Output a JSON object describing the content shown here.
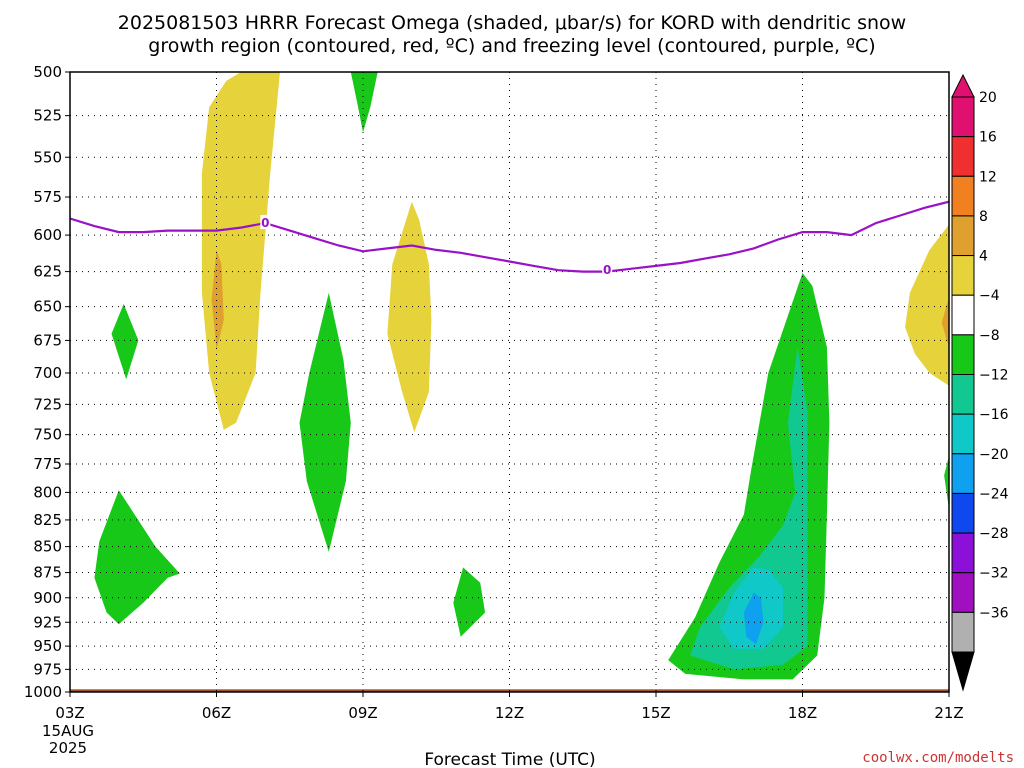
{
  "title": {
    "line1": "2025081503 HRRR Forecast Omega (shaded, μbar/s) for KORD with dendritic snow",
    "line2": "growth region (contoured, red, ºC) and freezing level (contoured, purple, ºC)"
  },
  "credit": "coolwx.com/modelts",
  "chart_data": {
    "type": "heatmap",
    "xlabel": "Forecast Time (UTC)",
    "ylabel": "",
    "x_range": [
      3,
      21
    ],
    "y_range": [
      500,
      1000
    ],
    "y_scale": "log-pressure (inverted)",
    "grid": true,
    "x_ticks": [
      {
        "value": 3,
        "label": "03Z",
        "sub": [
          "15AUG",
          "2025"
        ]
      },
      {
        "value": 6,
        "label": "06Z"
      },
      {
        "value": 9,
        "label": "09Z"
      },
      {
        "value": 12,
        "label": "12Z"
      },
      {
        "value": 15,
        "label": "15Z"
      },
      {
        "value": 18,
        "label": "18Z"
      },
      {
        "value": 21,
        "label": "21Z"
      }
    ],
    "y_ticks": [
      500,
      525,
      550,
      575,
      600,
      625,
      650,
      675,
      700,
      725,
      750,
      775,
      800,
      825,
      850,
      875,
      900,
      925,
      950,
      975,
      1000
    ],
    "colorbar": {
      "levels": [
        {
          "label": "20",
          "color": "#e01070"
        },
        {
          "label": "16",
          "color": "#f03030"
        },
        {
          "label": "12",
          "color": "#f08020"
        },
        {
          "label": "8",
          "color": "#e0a030"
        },
        {
          "label": "4",
          "color": "#e6d23a"
        },
        {
          "label": "−4",
          "color": "#ffffff"
        },
        {
          "label": "−8",
          "color": "#18c818"
        },
        {
          "label": "−12",
          "color": "#10c890"
        },
        {
          "label": "−16",
          "color": "#10c8c8"
        },
        {
          "label": "−20",
          "color": "#10a0f0"
        },
        {
          "label": "−24",
          "color": "#1048f0"
        },
        {
          "label": "−28",
          "color": "#8c10d8"
        },
        {
          "label": "−32",
          "color": "#a010c0"
        },
        {
          "label": "−36",
          "color": "#b0b0b0"
        }
      ],
      "over_color": "#e01070",
      "under_color": "#000000"
    },
    "freezing_level": {
      "color": "#9a12c8",
      "label": "0",
      "label_points": [
        {
          "x": 7.0,
          "p": 592
        },
        {
          "x": 14.0,
          "p": 624
        }
      ],
      "points": [
        [
          3.0,
          589
        ],
        [
          3.5,
          594
        ],
        [
          4.0,
          598
        ],
        [
          4.5,
          598
        ],
        [
          5.0,
          597
        ],
        [
          5.5,
          597
        ],
        [
          6.0,
          597
        ],
        [
          6.5,
          595
        ],
        [
          7.0,
          592
        ],
        [
          7.5,
          597
        ],
        [
          8.0,
          602
        ],
        [
          8.5,
          607
        ],
        [
          9.0,
          611
        ],
        [
          9.5,
          609
        ],
        [
          10.0,
          607
        ],
        [
          10.5,
          610
        ],
        [
          11.0,
          612
        ],
        [
          11.5,
          615
        ],
        [
          12.0,
          618
        ],
        [
          12.5,
          621
        ],
        [
          13.0,
          624
        ],
        [
          13.5,
          625
        ],
        [
          14.0,
          625
        ],
        [
          14.5,
          623
        ],
        [
          15.0,
          621
        ],
        [
          15.5,
          619
        ],
        [
          16.0,
          616
        ],
        [
          16.5,
          613
        ],
        [
          17.0,
          609
        ],
        [
          17.5,
          603
        ],
        [
          18.0,
          598
        ],
        [
          18.5,
          598
        ],
        [
          19.0,
          600
        ],
        [
          19.5,
          592
        ],
        [
          20.0,
          587
        ],
        [
          20.5,
          582
        ],
        [
          21.0,
          578
        ]
      ]
    },
    "ground_layer": {
      "color": "#a0522d",
      "level_hpa": 997
    },
    "shaded_regions": [
      {
        "name": "yellow-plume-06z",
        "range": "4 to 8",
        "color": "#e6d23a",
        "points": [
          [
            6.15,
            746
          ],
          [
            5.85,
            700
          ],
          [
            5.7,
            640
          ],
          [
            5.7,
            560
          ],
          [
            5.85,
            520
          ],
          [
            6.2,
            505
          ],
          [
            6.5,
            500
          ],
          [
            7.3,
            500
          ],
          [
            7.1,
            560
          ],
          [
            6.9,
            640
          ],
          [
            6.8,
            700
          ],
          [
            6.4,
            740
          ]
        ]
      },
      {
        "name": "orange-core-06z",
        "range": "8 to 12",
        "color": "#e0a030",
        "points": [
          [
            6.0,
            610
          ],
          [
            5.9,
            645
          ],
          [
            6.0,
            682
          ],
          [
            6.15,
            660
          ],
          [
            6.1,
            620
          ]
        ]
      },
      {
        "name": "yellow-plume-10z",
        "range": "4 to 8",
        "color": "#e6d23a",
        "points": [
          [
            10.0,
            578
          ],
          [
            9.6,
            620
          ],
          [
            9.5,
            670
          ],
          [
            9.8,
            715
          ],
          [
            10.05,
            748
          ],
          [
            10.35,
            715
          ],
          [
            10.4,
            660
          ],
          [
            10.35,
            620
          ],
          [
            10.15,
            590
          ]
        ]
      },
      {
        "name": "yellow-right-edge-21z",
        "range": "4 to 8",
        "color": "#e6d23a",
        "points": [
          [
            21.0,
            593
          ],
          [
            20.6,
            610
          ],
          [
            20.2,
            640
          ],
          [
            20.1,
            665
          ],
          [
            20.3,
            685
          ],
          [
            20.6,
            700
          ],
          [
            21.0,
            710
          ]
        ]
      },
      {
        "name": "orange-right-edge-21z",
        "range": "8 to 12",
        "color": "#e0a030",
        "points": [
          [
            21.0,
            643
          ],
          [
            20.85,
            662
          ],
          [
            21.0,
            680
          ]
        ]
      },
      {
        "name": "green-09z-top",
        "range": "-8 to -4",
        "color": "#18c818",
        "points": [
          [
            8.75,
            500
          ],
          [
            9.3,
            500
          ],
          [
            9.15,
            520
          ],
          [
            9.0,
            535
          ],
          [
            8.9,
            520
          ]
        ]
      },
      {
        "name": "green-04z-small",
        "range": "-8 to -4",
        "color": "#18c818",
        "points": [
          [
            4.1,
            648
          ],
          [
            3.85,
            670
          ],
          [
            4.15,
            705
          ],
          [
            4.4,
            675
          ]
        ]
      },
      {
        "name": "green-08z",
        "range": "-8 to -4",
        "color": "#18c818",
        "points": [
          [
            8.3,
            640
          ],
          [
            7.9,
            700
          ],
          [
            7.7,
            740
          ],
          [
            7.85,
            790
          ],
          [
            8.3,
            855
          ],
          [
            8.65,
            790
          ],
          [
            8.75,
            740
          ],
          [
            8.6,
            690
          ]
        ]
      },
      {
        "name": "green-04z-low",
        "range": "-8 to -4",
        "color": "#18c818",
        "points": [
          [
            4.0,
            798
          ],
          [
            3.6,
            845
          ],
          [
            3.5,
            880
          ],
          [
            3.75,
            915
          ],
          [
            4.0,
            927
          ],
          [
            4.5,
            905
          ],
          [
            5.0,
            880
          ],
          [
            5.25,
            876
          ],
          [
            4.75,
            850
          ]
        ]
      },
      {
        "name": "green-11z",
        "range": "-8 to -4",
        "color": "#18c818",
        "points": [
          [
            11.05,
            870
          ],
          [
            10.85,
            905
          ],
          [
            11.0,
            940
          ],
          [
            11.5,
            915
          ],
          [
            11.4,
            885
          ]
        ]
      },
      {
        "name": "green-18z-plume",
        "range": "-8 to -4",
        "color": "#18c818",
        "points": [
          [
            18.0,
            626
          ],
          [
            17.3,
            700
          ],
          [
            16.95,
            780
          ],
          [
            16.8,
            820
          ],
          [
            16.3,
            865
          ],
          [
            15.8,
            920
          ],
          [
            15.25,
            965
          ],
          [
            15.6,
            980
          ],
          [
            16.8,
            986
          ],
          [
            17.8,
            986
          ],
          [
            18.3,
            960
          ],
          [
            18.45,
            900
          ],
          [
            18.5,
            820
          ],
          [
            18.55,
            740
          ],
          [
            18.5,
            680
          ],
          [
            18.2,
            635
          ]
        ]
      },
      {
        "name": "green-21z-edge",
        "range": "-8 to -4",
        "color": "#18c818",
        "points": [
          [
            21.0,
            768
          ],
          [
            20.9,
            785
          ],
          [
            21.0,
            815
          ]
        ]
      },
      {
        "name": "teal-18z",
        "range": "-12 to -8",
        "color": "#10c890",
        "points": [
          [
            17.9,
            680
          ],
          [
            17.7,
            740
          ],
          [
            17.85,
            800
          ],
          [
            17.6,
            830
          ],
          [
            17.1,
            860
          ],
          [
            16.5,
            890
          ],
          [
            15.9,
            930
          ],
          [
            15.7,
            960
          ],
          [
            16.6,
            975
          ],
          [
            17.6,
            970
          ],
          [
            18.1,
            950
          ],
          [
            18.1,
            870
          ],
          [
            18.1,
            790
          ],
          [
            18.1,
            730
          ]
        ]
      },
      {
        "name": "cyan-18z",
        "range": "-16 to -12",
        "color": "#10c8c8",
        "points": [
          [
            17.0,
            870
          ],
          [
            16.6,
            895
          ],
          [
            16.3,
            930
          ],
          [
            16.6,
            953
          ],
          [
            17.2,
            953
          ],
          [
            17.6,
            930
          ],
          [
            17.6,
            890
          ],
          [
            17.3,
            872
          ]
        ]
      },
      {
        "name": "blue-17z-core",
        "range": "-20 to -16",
        "color": "#10a0f0",
        "points": [
          [
            17.0,
            895
          ],
          [
            16.8,
            915
          ],
          [
            16.85,
            940
          ],
          [
            17.05,
            948
          ],
          [
            17.2,
            925
          ],
          [
            17.15,
            900
          ]
        ]
      }
    ]
  }
}
